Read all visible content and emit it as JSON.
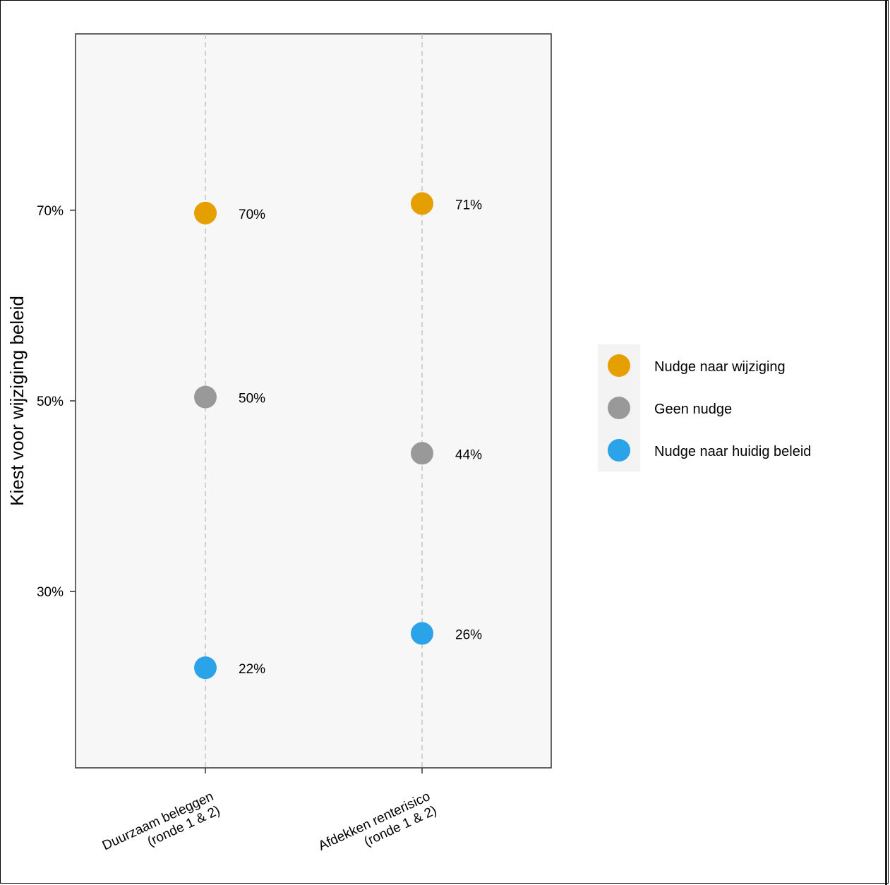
{
  "chart_data": {
    "type": "scatter",
    "ylabel": "Kiest voor wijziging beleid",
    "xlabel": "",
    "categories": [
      [
        "Duurzaam beleggen",
        "(ronde 1 & 2)"
      ],
      [
        "Afdekken renterisico",
        "(ronde 1 & 2)"
      ]
    ],
    "y_ticks": [
      {
        "value": 30,
        "label": "30%"
      },
      {
        "value": 50,
        "label": "50%"
      },
      {
        "value": 70,
        "label": "70%"
      }
    ],
    "ylim": [
      11.5,
      88.5
    ],
    "grid": "vertical dashed lines at categories",
    "legend_position": "right",
    "series": [
      {
        "name": "Nudge naar wijziging",
        "color": "#E69F00",
        "values": [
          69.7,
          70.7
        ],
        "labels": [
          "70%",
          "71%"
        ]
      },
      {
        "name": "Geen nudge",
        "color": "#999999",
        "values": [
          50.4,
          44.5
        ],
        "labels": [
          "50%",
          "44%"
        ]
      },
      {
        "name": "Nudge naar huidig beleid",
        "color": "#2BA3E8",
        "values": [
          22.0,
          25.6
        ],
        "labels": [
          "22%",
          "26%"
        ]
      }
    ]
  }
}
